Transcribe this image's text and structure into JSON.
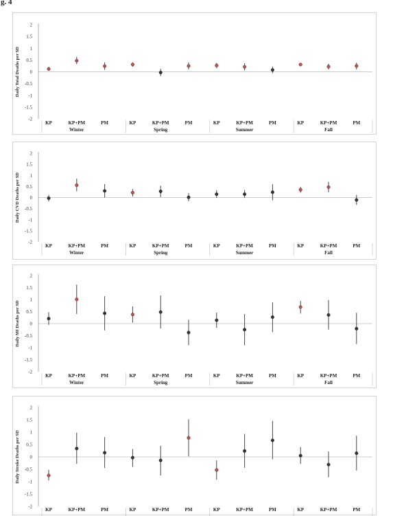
{
  "figure_label": "g. 4",
  "colors": {
    "significant": "#c0504d",
    "nonsignificant": "#333333",
    "errorbar": "#444444"
  },
  "chart_data": [
    {
      "type": "scatter",
      "ylabel": "Daily Total Deaths per SD",
      "ylim": [
        -2,
        2
      ],
      "yticks": [
        "2",
        "1.5",
        "1",
        "0.5",
        "0",
        "-0.5",
        "-1",
        "-1.5",
        "-2"
      ],
      "categories": [
        "KP",
        "KP+PM",
        "PM",
        "KP",
        "KP+PM",
        "PM",
        "KP",
        "KP+PM",
        "PM",
        "KP",
        "KP+PM",
        "PM"
      ],
      "seasons": [
        "Winter",
        "Spring",
        "Summer",
        "Fall"
      ],
      "values": [
        0.12,
        0.47,
        0.24,
        0.31,
        -0.03,
        0.25,
        0.27,
        0.21,
        0.08,
        0.31,
        0.22,
        0.25
      ],
      "lower": [
        0.04,
        0.32,
        0.08,
        0.22,
        -0.18,
        0.1,
        0.15,
        0.06,
        -0.06,
        0.24,
        0.1,
        0.1
      ],
      "upper": [
        0.21,
        0.64,
        0.4,
        0.4,
        0.13,
        0.4,
        0.38,
        0.36,
        0.22,
        0.38,
        0.34,
        0.39
      ],
      "significant": [
        true,
        true,
        true,
        true,
        false,
        true,
        true,
        true,
        false,
        true,
        true,
        true
      ]
    },
    {
      "type": "scatter",
      "ylabel": "Daily CVD Deaths per SD",
      "ylim": [
        -2,
        2
      ],
      "yticks": [
        "2",
        "1.5",
        "1",
        "0.5",
        "0",
        "-0.5",
        "-1",
        "-1.5",
        "-2"
      ],
      "categories": [
        "KP",
        "KP+PM",
        "PM",
        "KP",
        "KP+PM",
        "PM",
        "KP",
        "KP+PM",
        "PM",
        "KP",
        "KP+PM",
        "PM"
      ],
      "seasons": [
        "Winter",
        "Spring",
        "Summer",
        "Fall"
      ],
      "values": [
        -0.03,
        0.56,
        0.3,
        0.22,
        0.28,
        0.01,
        0.15,
        0.15,
        0.24,
        0.35,
        0.47,
        -0.11
      ],
      "lower": [
        -0.18,
        0.28,
        0.0,
        0.05,
        0.02,
        -0.17,
        -0.02,
        -0.02,
        -0.12,
        0.22,
        0.24,
        -0.33
      ],
      "upper": [
        0.12,
        0.85,
        0.61,
        0.38,
        0.53,
        0.2,
        0.33,
        0.34,
        0.6,
        0.48,
        0.71,
        0.12
      ],
      "significant": [
        false,
        true,
        false,
        true,
        false,
        false,
        false,
        false,
        false,
        true,
        true,
        false
      ]
    },
    {
      "type": "scatter",
      "ylabel": "Daily MI Deaths per SD",
      "ylim": [
        -2,
        2
      ],
      "yticks": [
        "2",
        "1.5",
        "1",
        "0.5",
        "0",
        "-0.5",
        "-1",
        "-1.5",
        "-2"
      ],
      "categories": [
        "KP",
        "KP+PM",
        "PM",
        "KP",
        "KP+PM",
        "PM",
        "KP",
        "KP+PM",
        "PM",
        "KP",
        "KP+PM",
        "PM"
      ],
      "seasons": [
        "Winter",
        "Spring",
        "Summer",
        "Fall"
      ],
      "values": [
        0.21,
        1.01,
        0.43,
        0.38,
        0.48,
        -0.37,
        0.14,
        -0.25,
        0.27,
        0.69,
        0.36,
        -0.21
      ],
      "lower": [
        -0.05,
        0.4,
        -0.28,
        0.04,
        -0.2,
        -0.9,
        -0.18,
        -0.9,
        -0.35,
        0.42,
        -0.25,
        -0.85
      ],
      "upper": [
        0.48,
        1.62,
        1.14,
        0.72,
        1.17,
        0.16,
        0.46,
        0.4,
        0.88,
        0.95,
        0.98,
        0.45
      ],
      "significant": [
        false,
        true,
        false,
        true,
        false,
        false,
        false,
        false,
        false,
        true,
        false,
        false
      ]
    },
    {
      "type": "scatter",
      "ylabel": "Daily Stroke Deaths per SD",
      "ylim": [
        -2,
        2
      ],
      "yticks": [
        "2",
        "1.5",
        "1",
        "0.5",
        "0",
        "-0.5",
        "-1",
        "-1.5",
        "-2"
      ],
      "categories": [
        "KP",
        "KP+PM",
        "PM",
        "KP",
        "KP+PM",
        "PM",
        "KP",
        "KP+PM",
        "PM",
        "KP",
        "KP+PM",
        "PM"
      ],
      "seasons": [],
      "values": [
        -0.75,
        0.34,
        0.17,
        -0.03,
        -0.14,
        0.77,
        -0.53,
        0.24,
        0.67,
        0.05,
        -0.31,
        0.15
      ],
      "lower": [
        -0.95,
        -0.28,
        -0.45,
        -0.4,
        -0.75,
        0.02,
        -0.92,
        -0.44,
        -0.1,
        -0.28,
        -0.82,
        -0.55
      ],
      "upper": [
        -0.52,
        0.98,
        0.8,
        0.32,
        0.45,
        1.52,
        -0.14,
        0.93,
        1.45,
        0.4,
        0.22,
        0.86
      ],
      "significant": [
        true,
        false,
        false,
        false,
        false,
        true,
        true,
        false,
        false,
        false,
        false,
        false
      ]
    }
  ]
}
